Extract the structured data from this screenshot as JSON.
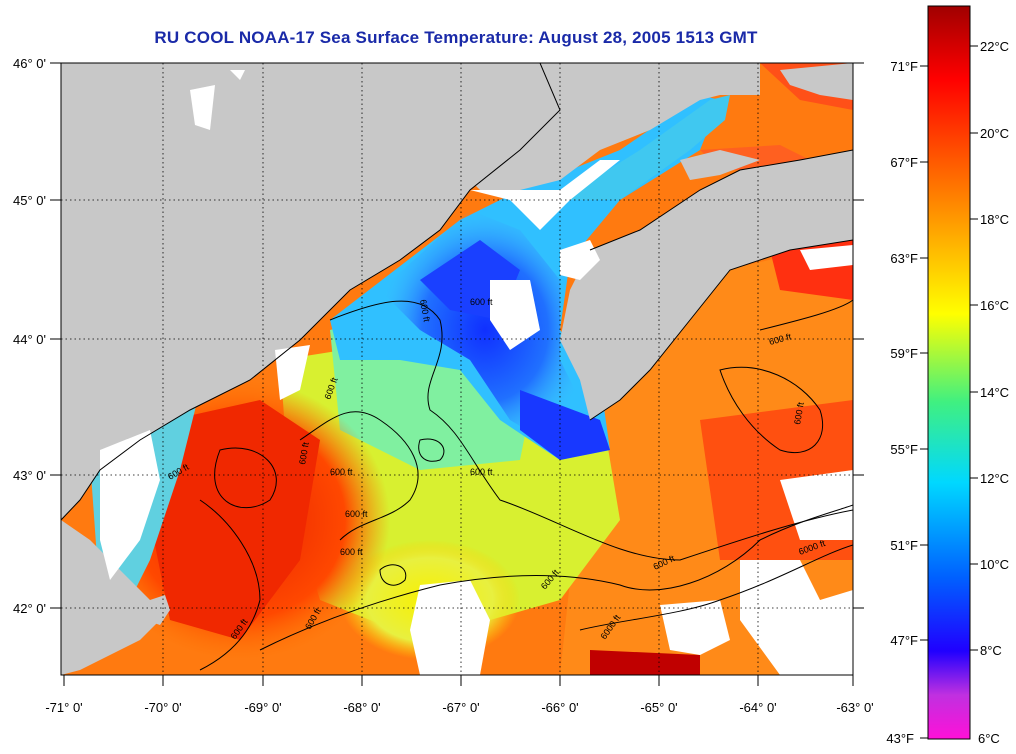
{
  "title": "RU COOL  NOAA-17  Sea Surface Temperature:  August 28, 2005 1513 GMT",
  "lon_labels": [
    "-71° 0'",
    "-70° 0'",
    "-69° 0'",
    "-68° 0'",
    "-67° 0'",
    "-66° 0'",
    "-65° 0'",
    "-64° 0'",
    "-63° 0'"
  ],
  "lat_labels": [
    "46° 0'",
    "45° 0'",
    "44° 0'",
    "43° 0'",
    "42° 0'"
  ],
  "colorbar": {
    "fahrenheit_labels": [
      "71°F",
      "67°F",
      "63°F",
      "59°F",
      "55°F",
      "51°F",
      "47°F",
      "43°F"
    ],
    "celsius_labels": [
      "22°C",
      "20°C",
      "18°C",
      "16°C",
      "14°C",
      "12°C",
      "10°C",
      "8°C",
      "6°C"
    ],
    "range_c": [
      6,
      23
    ],
    "colors": [
      "#ff10d8",
      "#c030e0",
      "#0020ff",
      "#0080ff",
      "#00e8f0",
      "#40f080",
      "#ffff00",
      "#ff9000",
      "#ff2000",
      "#a00000"
    ]
  },
  "contour_label": "600 ft",
  "contour_label_alt": "6000 ft",
  "colors": {
    "land": "#c8c8c8",
    "cloud": "#ffffff",
    "title": "#1a2aa8"
  }
}
